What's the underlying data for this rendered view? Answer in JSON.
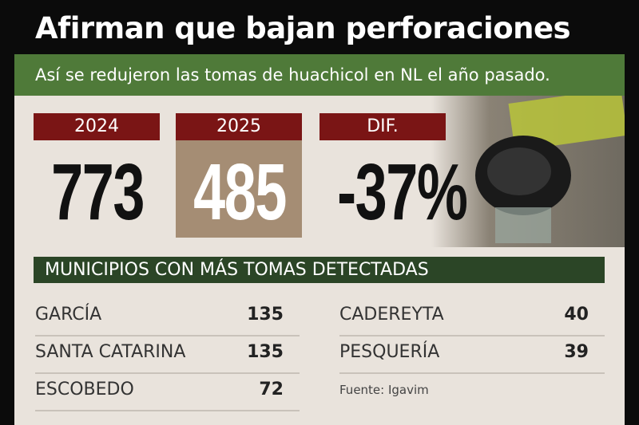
{
  "header": {
    "title": "Afirman que bajan perforaciones",
    "subtitle": "Así se redujeron las tomas de huachicol en NL el año pasado."
  },
  "stats": [
    {
      "label": "2024",
      "value": 773
    },
    {
      "label": "2025",
      "value": 485
    },
    {
      "label": "DIF.",
      "value": "-37%"
    }
  ],
  "municipalities": {
    "title": "MUNICIPIOS CON MÁS TOMAS DETECTADAS",
    "rows": [
      {
        "name": "GARCÍA",
        "value": 135
      },
      {
        "name": "SANTA CATARINA",
        "value": 135
      },
      {
        "name": "ESCOBEDO",
        "value": 72
      },
      {
        "name": "CADEREYTA",
        "value": 40
      },
      {
        "name": "PESQUERÍA",
        "value": 39
      }
    ]
  },
  "source": "Fuente: Igavim"
}
